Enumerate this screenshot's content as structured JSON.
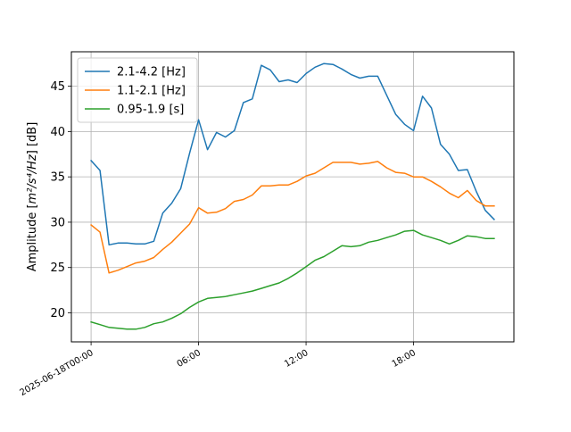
{
  "chart_data": {
    "type": "line",
    "ylabel_prefix": "Amplitude [",
    "ylabel_math": "m²/s⁴/Hz",
    "ylabel_suffix": "] [dB]",
    "x_unit": "hours since 2025-06-18T00:00",
    "xlim": [
      -1.1,
      23.6
    ],
    "ylim": [
      16.8,
      48.8
    ],
    "grid": true,
    "legend_position": "upper-left",
    "x_ticks": [
      {
        "value": 0,
        "label": "2025-06-18T00:00"
      },
      {
        "value": 6,
        "label": "06:00"
      },
      {
        "value": 12,
        "label": "12:00"
      },
      {
        "value": 18,
        "label": "18:00"
      }
    ],
    "y_ticks": [
      20,
      25,
      30,
      35,
      40,
      45
    ],
    "x": [
      0,
      0.5,
      1,
      1.5,
      2,
      2.5,
      3,
      3.5,
      4,
      4.5,
      5,
      5.5,
      6,
      6.5,
      7,
      7.5,
      8,
      8.5,
      9,
      9.5,
      10,
      10.5,
      11,
      11.5,
      12,
      12.5,
      13,
      13.5,
      14,
      14.5,
      15,
      15.5,
      16,
      16.5,
      17,
      17.5,
      18,
      18.5,
      19,
      19.5,
      20,
      20.5,
      21,
      21.5,
      22,
      22.5
    ],
    "series": [
      {
        "name": "2.1-4.2 [Hz]",
        "color": "#1f77b4",
        "values": [
          36.8,
          35.7,
          27.5,
          27.7,
          27.7,
          27.6,
          27.6,
          27.9,
          31.0,
          32.1,
          33.7,
          37.6,
          41.3,
          38.0,
          39.9,
          39.4,
          40.1,
          43.2,
          43.6,
          47.3,
          46.8,
          45.5,
          45.7,
          45.4,
          46.4,
          47.1,
          47.5,
          47.4,
          46.9,
          46.3,
          45.9,
          46.1,
          46.1,
          44.0,
          41.9,
          40.8,
          40.1,
          43.9,
          42.6,
          38.6,
          37.5,
          35.7,
          35.8,
          33.4,
          31.3,
          30.3
        ]
      },
      {
        "name": "1.1-2.1 [Hz]",
        "color": "#ff7f0e",
        "values": [
          29.7,
          28.9,
          24.4,
          24.7,
          25.1,
          25.5,
          25.7,
          26.1,
          27.0,
          27.8,
          28.8,
          29.8,
          31.6,
          31.0,
          31.1,
          31.5,
          32.3,
          32.5,
          33.0,
          34.0,
          34.0,
          34.1,
          34.1,
          34.5,
          35.1,
          35.4,
          36.0,
          36.6,
          36.6,
          36.6,
          36.4,
          36.5,
          36.7,
          36.0,
          35.5,
          35.4,
          35.0,
          35.0,
          34.5,
          33.9,
          33.2,
          32.7,
          33.5,
          32.4,
          31.8,
          31.8
        ]
      },
      {
        "name": "0.95-1.9 [s]",
        "color": "#2ca02c",
        "values": [
          19.0,
          18.7,
          18.4,
          18.3,
          18.2,
          18.2,
          18.4,
          18.8,
          19.0,
          19.4,
          19.9,
          20.6,
          21.2,
          21.6,
          21.7,
          21.8,
          22.0,
          22.2,
          22.4,
          22.7,
          23.0,
          23.3,
          23.8,
          24.4,
          25.1,
          25.8,
          26.2,
          26.8,
          27.4,
          27.3,
          27.4,
          27.8,
          28.0,
          28.3,
          28.6,
          29.0,
          29.1,
          28.6,
          28.3,
          28.0,
          27.6,
          28.0,
          28.5,
          28.4,
          28.2,
          28.2
        ]
      }
    ]
  }
}
